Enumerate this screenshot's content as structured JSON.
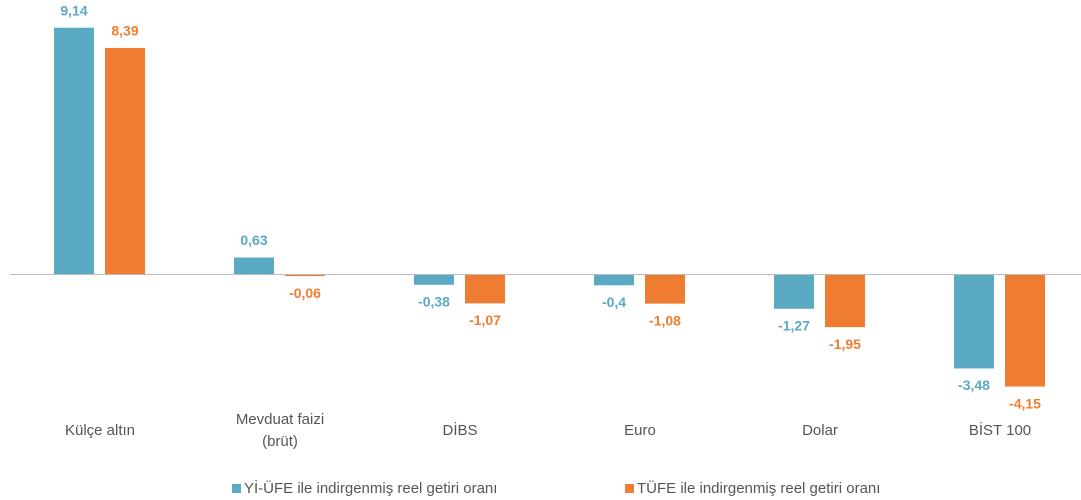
{
  "chart_data": {
    "type": "bar",
    "categories": [
      "Külçe altın",
      "Mevduat faizi (brüt)",
      "DİBS",
      "Euro",
      "Dolar",
      "BİST 100"
    ],
    "series": [
      {
        "name": "Yİ-ÜFE ile indirgenmiş reel getiri oranı",
        "color": "#5aaac4",
        "values": [
          9.14,
          0.63,
          -0.38,
          -0.4,
          -1.27,
          -3.48
        ],
        "value_labels": [
          "9,14",
          "0,63",
          "-0,38",
          "-0,4",
          "-1,27",
          "-3,48"
        ]
      },
      {
        "name": "TÜFE ile indirgenmiş reel getiri oranı",
        "color": "#ef7d31",
        "values": [
          8.39,
          -0.06,
          -1.07,
          -1.08,
          -1.95,
          -4.15
        ],
        "value_labels": [
          "8,39",
          "-0,06",
          "-1,07",
          "-1,08",
          "-1,95",
          "-4,15"
        ]
      }
    ],
    "ylim": [
      -4.5,
      9.5
    ],
    "legend": "bottom"
  }
}
